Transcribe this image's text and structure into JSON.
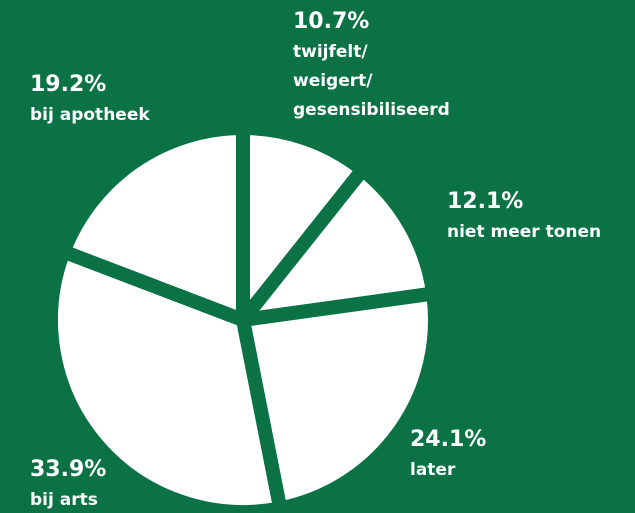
{
  "chart_data": {
    "type": "pie",
    "categories": [
      "twijfelt/weigert/gesensibiliseerd",
      "niet meer tonen",
      "later",
      "bij arts",
      "bij apotheek"
    ],
    "values": [
      10.7,
      12.1,
      24.1,
      33.9,
      19.2
    ],
    "value_labels": [
      "10.7%",
      "12.1%",
      "24.1%",
      "33.9%",
      "19.2%"
    ],
    "color": "#ffffff"
  }
}
